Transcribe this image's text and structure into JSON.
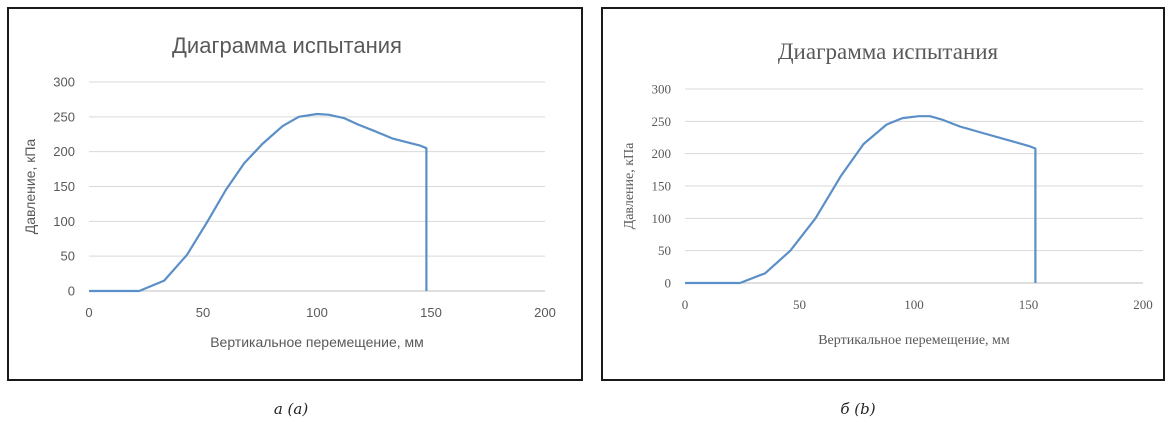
{
  "figures": [
    {
      "caption": "а (a)"
    },
    {
      "caption": "б (b)"
    }
  ],
  "chart_data": [
    {
      "type": "line",
      "title": "Диаграмма испытания",
      "xlabel": "Вертикальное перемещение, мм",
      "ylabel": "Давление, кПа",
      "xlim": [
        0,
        200
      ],
      "ylim": [
        0,
        300
      ],
      "xticks": [
        0,
        50,
        100,
        150,
        200
      ],
      "yticks": [
        0,
        50,
        100,
        150,
        200,
        250,
        300
      ],
      "grid": true,
      "line_color": "#5b8fc7",
      "series": [
        {
          "x": [
            0,
            22,
            33,
            43,
            52,
            60,
            68,
            76,
            85,
            92,
            100,
            105,
            112,
            118,
            125,
            133,
            140,
            145,
            148,
            148
          ],
          "y": [
            0,
            0,
            15,
            52,
            100,
            145,
            183,
            211,
            237,
            250,
            254,
            253,
            248,
            239,
            230,
            219,
            213,
            209,
            205,
            0
          ]
        }
      ]
    },
    {
      "type": "line",
      "title": "Диаграмма испытания",
      "xlabel": "Вертикальное перемещение, мм",
      "ylabel": "Давление, кПа",
      "xlim": [
        0,
        200
      ],
      "ylim": [
        0,
        300
      ],
      "xticks": [
        0,
        50,
        100,
        150,
        200
      ],
      "yticks": [
        0,
        50,
        100,
        150,
        200,
        250,
        300
      ],
      "grid": true,
      "line_color": "#5b8fc7",
      "series": [
        {
          "x": [
            0,
            24,
            35,
            46,
            57,
            68,
            78,
            88,
            95,
            102,
            107,
            112,
            120,
            130,
            140,
            150,
            153,
            153
          ],
          "y": [
            0,
            0,
            15,
            50,
            100,
            165,
            215,
            245,
            255,
            258,
            258,
            253,
            242,
            232,
            222,
            212,
            208,
            0
          ]
        }
      ]
    }
  ]
}
